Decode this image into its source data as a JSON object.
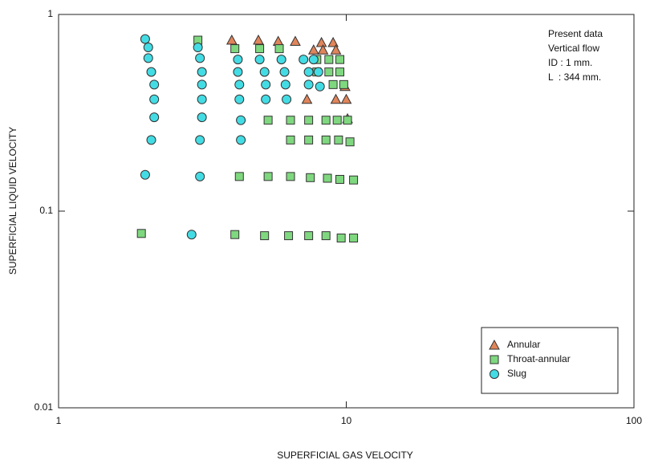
{
  "chart_data": {
    "type": "scatter",
    "xlabel": "SUPERFICIAL GAS VELOCITY",
    "ylabel": "SUPERFICIAL LIQUID VELOCITY",
    "xscale": "log",
    "yscale": "log",
    "xlim": [
      1,
      100
    ],
    "ylim": [
      0.01,
      1
    ],
    "xticks": [
      1,
      10,
      100
    ],
    "yticks": [
      0.01,
      0.1,
      1
    ],
    "annotations": [
      "Present data",
      "Vertical flow",
      "ID : 1 mm.",
      "L  : 344 mm."
    ],
    "legend": "lower right",
    "series": [
      {
        "name": "Annular",
        "color": "#e0855a",
        "marker": "triangle",
        "x": [
          4.0,
          4.95,
          5.8,
          6.65,
          8.2,
          9.0,
          7.7,
          8.3,
          9.2,
          9.9,
          7.3,
          9.2,
          10.0,
          10.1
        ],
        "y": [
          0.74,
          0.74,
          0.73,
          0.73,
          0.72,
          0.72,
          0.66,
          0.66,
          0.66,
          0.43,
          0.37,
          0.37,
          0.37,
          0.295
        ]
      },
      {
        "name": "Throat-annular",
        "color": "#7fd87f",
        "marker": "square",
        "x": [
          3.05,
          4.1,
          5.0,
          5.85,
          7.9,
          8.7,
          9.5,
          7.9,
          8.7,
          9.5,
          9.0,
          9.8,
          5.35,
          6.4,
          7.4,
          8.5,
          9.3,
          10.1,
          6.4,
          7.4,
          8.5,
          9.4,
          10.3,
          4.25,
          5.35,
          6.4,
          7.5,
          8.6,
          9.5,
          10.6,
          1.94,
          4.1,
          5.2,
          6.3,
          7.4,
          8.5,
          9.6,
          10.6
        ],
        "y": [
          0.74,
          0.67,
          0.67,
          0.67,
          0.59,
          0.59,
          0.59,
          0.51,
          0.51,
          0.51,
          0.44,
          0.44,
          0.29,
          0.29,
          0.29,
          0.29,
          0.29,
          0.29,
          0.23,
          0.23,
          0.23,
          0.23,
          0.225,
          0.15,
          0.15,
          0.15,
          0.148,
          0.147,
          0.145,
          0.144,
          0.077,
          0.076,
          0.075,
          0.075,
          0.075,
          0.075,
          0.073,
          0.073
        ]
      },
      {
        "name": "Slug",
        "color": "#44dce4",
        "marker": "circle",
        "x": [
          2.0,
          2.05,
          2.05,
          2.1,
          2.15,
          2.15,
          2.15,
          2.1,
          2.0,
          2.9,
          3.05,
          3.1,
          3.15,
          3.15,
          3.15,
          3.15,
          3.1,
          3.1,
          4.2,
          4.2,
          4.25,
          4.25,
          4.3,
          4.3,
          5.0,
          5.2,
          5.25,
          5.25,
          5.95,
          6.1,
          6.15,
          6.2,
          7.1,
          7.4,
          7.4,
          7.7,
          8.0,
          8.1
        ],
        "y": [
          0.75,
          0.68,
          0.6,
          0.51,
          0.44,
          0.37,
          0.3,
          0.23,
          0.153,
          0.076,
          0.68,
          0.6,
          0.51,
          0.44,
          0.37,
          0.3,
          0.23,
          0.15,
          0.59,
          0.51,
          0.44,
          0.37,
          0.29,
          0.23,
          0.59,
          0.51,
          0.44,
          0.37,
          0.59,
          0.51,
          0.44,
          0.37,
          0.59,
          0.51,
          0.44,
          0.59,
          0.51,
          0.43
        ]
      }
    ]
  }
}
